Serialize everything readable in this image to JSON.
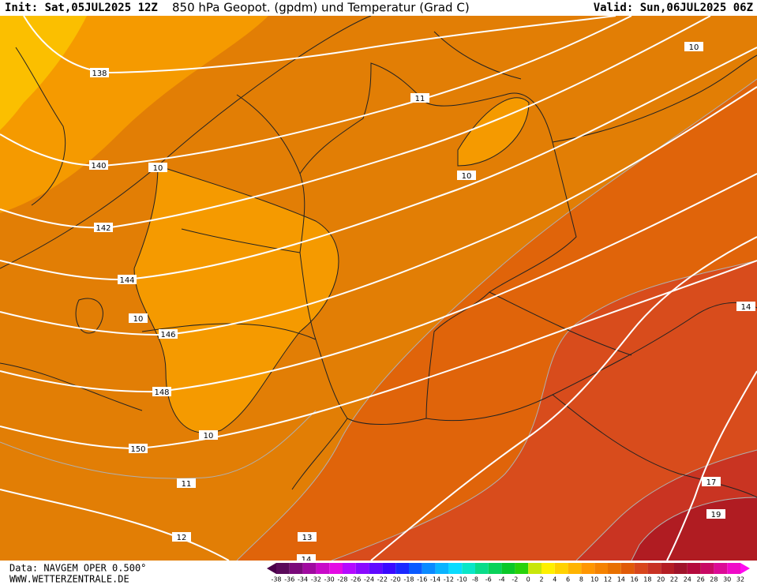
{
  "header": {
    "init": "Init: Sat,05JUL2025 12Z",
    "title": "850 hPa Geopot. (gpdm) und Temperatur (Grad C)",
    "valid": "Valid: Sun,06JUL2025 06Z"
  },
  "geopotential_labels": [
    138,
    140,
    142,
    144,
    146,
    148,
    150
  ],
  "temperature_labels": [
    10,
    11,
    10,
    10,
    10,
    10,
    11,
    12,
    13,
    14,
    14,
    17,
    19
  ],
  "footer": {
    "source": "Data: NAVGEM OPER 0.500°",
    "site": "WWW.WETTERZENTRALE.DE"
  },
  "colorbar": [
    -38,
    -36,
    -34,
    -32,
    -30,
    -28,
    -26,
    -24,
    -22,
    -20,
    -18,
    -16,
    -14,
    -12,
    -10,
    -8,
    -6,
    -4,
    -2,
    0,
    2,
    4,
    6,
    8,
    10,
    12,
    14,
    16,
    18,
    20,
    22,
    24,
    26,
    28,
    30,
    32
  ]
}
